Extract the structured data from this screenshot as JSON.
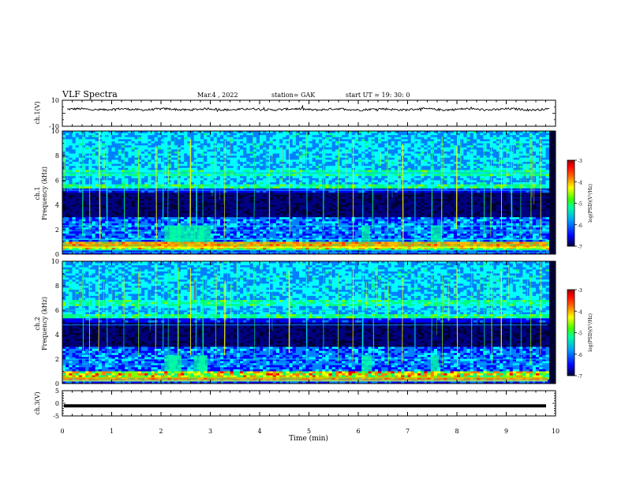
{
  "header": {
    "title": "VLF Spectra",
    "date": "Mar.4 , 2022",
    "station": "station= GAK",
    "start": "start UT = 19: 30: 0"
  },
  "chart_data": [
    {
      "name": "ch1-voltage",
      "type": "line",
      "ylabel": "ch.1(V)",
      "ylim": [
        -10,
        10
      ],
      "yticks": [
        "10",
        "-10"
      ],
      "xlim": [
        0,
        10
      ],
      "description_values": "noisy trace near 3 V",
      "level": 3
    },
    {
      "name": "ch1-spectrogram",
      "type": "heatmap",
      "ylabel_line1": "ch.1",
      "ylabel_line2": "Frequency (kHz)",
      "ylim": [
        0,
        10
      ],
      "yticks": [
        "0",
        "2",
        "4",
        "6",
        "8",
        "10"
      ],
      "xlim": [
        0,
        10
      ],
      "colorbar": {
        "label": "log(PSD)(V²/Hz)",
        "range": [
          -7,
          -3
        ],
        "ticks": [
          "-3",
          "-4",
          "-5",
          "-6",
          "-7"
        ]
      }
    },
    {
      "name": "ch2-spectrogram",
      "type": "heatmap",
      "ylabel_line1": "ch.2",
      "ylabel_line2": "Frequency (kHz)",
      "ylim": [
        0,
        10
      ],
      "yticks": [
        "0",
        "2",
        "4",
        "6",
        "8",
        "10"
      ],
      "xlim": [
        0,
        10
      ],
      "colorbar": {
        "label": "log(PSD)(V²/Hz)",
        "range": [
          -7,
          -3
        ],
        "ticks": [
          "-3",
          "-4",
          "-5",
          "-6",
          "-7"
        ]
      }
    },
    {
      "name": "ch3-voltage",
      "type": "line",
      "ylabel": "ch.3(V)",
      "ylim": [
        -5,
        5
      ],
      "yticks": [
        "5",
        "0",
        "-5"
      ],
      "xlim": [
        0,
        10
      ],
      "level": -1,
      "xlabel": "Time (min)",
      "xticks": [
        "0",
        "1",
        "2",
        "3",
        "4",
        "5",
        "6",
        "7",
        "8",
        "9",
        "10"
      ]
    }
  ],
  "colors": {
    "spectrum": [
      "#000033",
      "#000080",
      "#0000ff",
      "#0080ff",
      "#00ffff",
      "#00ff80",
      "#80ff00",
      "#ffff00",
      "#ff8000",
      "#ff0000",
      "#800000"
    ]
  }
}
